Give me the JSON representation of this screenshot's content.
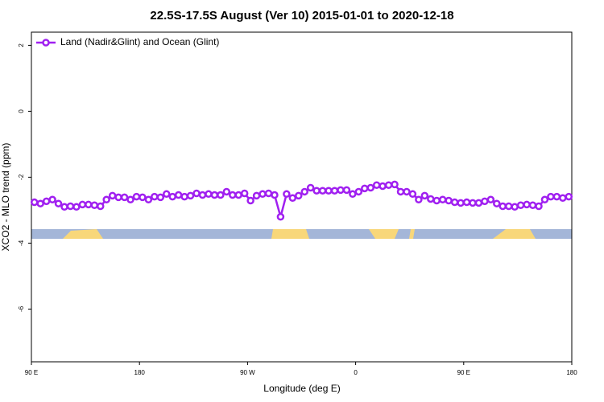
{
  "chart_data": {
    "type": "line",
    "title": "22.5S-17.5S August (Ver 10)   2015-01-01 to 2020-12-18",
    "x_label": "Longitude (deg E)",
    "y_label": "XCO2 - MLO trend (ppm)",
    "legend_position": "top-left",
    "xlim": [
      90,
      540
    ],
    "ylim": [
      -7.6,
      2.4
    ],
    "xticks": [
      {
        "value": 90,
        "label": "90 E"
      },
      180,
      {
        "value": 270,
        "label": "90 W"
      },
      {
        "value": 360,
        "label": "0"
      },
      {
        "value": 450,
        "label": "90 E"
      },
      {
        "value": 540,
        "label": "180"
      }
    ],
    "yticks": [
      2,
      0,
      -2,
      -4,
      -6
    ],
    "x": [
      92.5,
      97.5,
      102.5,
      107.5,
      112.5,
      117.5,
      122.5,
      127.5,
      132.5,
      137.5,
      142.5,
      147.5,
      152.5,
      157.5,
      162.5,
      167.5,
      172.5,
      177.5,
      182.5,
      187.5,
      192.5,
      197.5,
      202.5,
      207.5,
      212.5,
      217.5,
      222.5,
      227.5,
      232.5,
      237.5,
      242.5,
      247.5,
      252.5,
      257.5,
      262.5,
      267.5,
      272.5,
      277.5,
      282.5,
      287.5,
      292.5,
      297.5,
      302.5,
      307.5,
      312.5,
      317.5,
      322.5,
      327.5,
      332.5,
      337.5,
      342.5,
      347.5,
      352.5,
      357.5,
      362.5,
      367.5,
      372.5,
      377.5,
      382.5,
      387.5,
      392.5,
      397.5,
      402.5,
      407.5,
      412.5,
      417.5,
      422.5,
      427.5,
      432.5,
      437.5,
      442.5,
      447.5,
      452.5,
      457.5,
      462.5,
      467.5,
      472.5,
      477.5,
      482.5,
      487.5,
      492.5,
      497.5,
      502.5,
      507.5,
      512.5,
      517.5,
      522.5,
      527.5,
      532.5,
      537.5
    ],
    "series": [
      {
        "name": "Land (Nadir&Glint) and Ocean (Glint)",
        "color": "#a020f0",
        "values": [
          -2.76,
          -2.8,
          -2.73,
          -2.68,
          -2.8,
          -2.9,
          -2.88,
          -2.9,
          -2.83,
          -2.83,
          -2.85,
          -2.88,
          -2.68,
          -2.56,
          -2.61,
          -2.61,
          -2.68,
          -2.59,
          -2.61,
          -2.68,
          -2.59,
          -2.61,
          -2.51,
          -2.59,
          -2.54,
          -2.59,
          -2.56,
          -2.49,
          -2.54,
          -2.51,
          -2.54,
          -2.54,
          -2.44,
          -2.54,
          -2.54,
          -2.49,
          -2.71,
          -2.56,
          -2.51,
          -2.49,
          -2.54,
          -3.2,
          -2.51,
          -2.63,
          -2.56,
          -2.44,
          -2.32,
          -2.41,
          -2.41,
          -2.41,
          -2.41,
          -2.39,
          -2.39,
          -2.51,
          -2.44,
          -2.34,
          -2.32,
          -2.24,
          -2.27,
          -2.24,
          -2.22,
          -2.44,
          -2.44,
          -2.51,
          -2.68,
          -2.56,
          -2.66,
          -2.71,
          -2.68,
          -2.71,
          -2.76,
          -2.78,
          -2.76,
          -2.78,
          -2.78,
          -2.73,
          -2.68,
          -2.8,
          -2.88,
          -2.88,
          -2.9,
          -2.85,
          -2.83,
          -2.85,
          -2.88,
          -2.68,
          -2.59,
          -2.59,
          -2.63,
          -2.59
        ]
      }
    ]
  }
}
